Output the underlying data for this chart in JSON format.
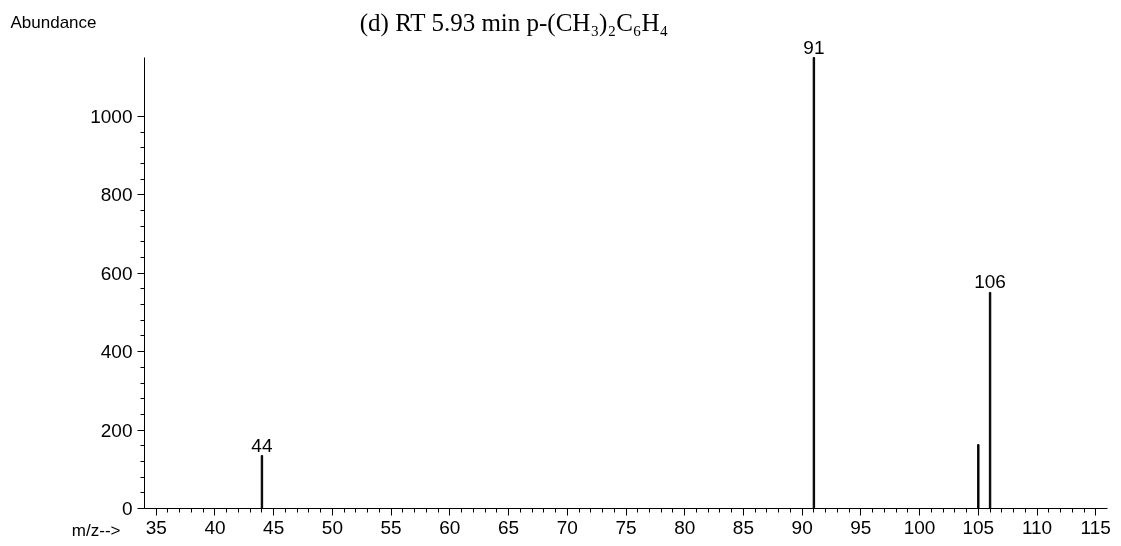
{
  "chart_data": {
    "type": "bar",
    "title": "(d) RT  5.93 min  p-(CH₃)₂C₆H₄",
    "xlabel": "m/z-->",
    "ylabel": "Abundance",
    "x": [
      44,
      91,
      105,
      106
    ],
    "series": [
      {
        "color": "#000000",
        "values": [
          135,
          1150,
          163,
          551
        ]
      }
    ],
    "annotations": [
      {
        "text": "44",
        "x": 44,
        "y": 135
      },
      {
        "text": "91",
        "x": 91,
        "y": 1150
      },
      {
        "text": "106",
        "x": 106,
        "y": 551
      }
    ],
    "xlim": [
      34,
      116
    ],
    "xticks": [
      35,
      40,
      45,
      50,
      55,
      60,
      65,
      70,
      75,
      80,
      85,
      90,
      95,
      100,
      105,
      110,
      115
    ],
    "ylim": [
      0,
      1150
    ],
    "yticks": [
      0,
      200,
      400,
      600,
      800,
      1000
    ],
    "grid": false
  }
}
